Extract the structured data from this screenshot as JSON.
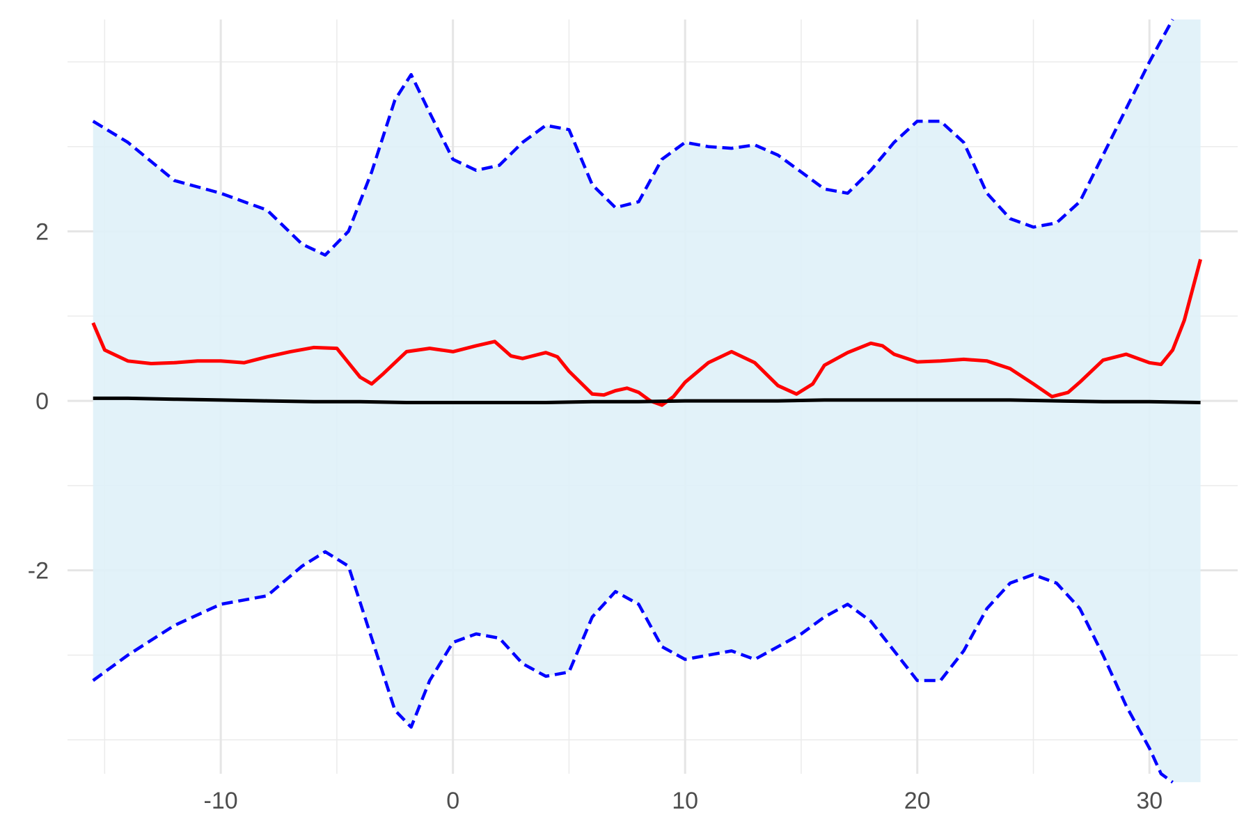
{
  "chart_data": {
    "type": "line",
    "title": "",
    "xlabel": "",
    "ylabel": "",
    "xlim": [
      -16.6,
      33.8
    ],
    "ylim": [
      -4.4,
      4.5
    ],
    "x_ticks": [
      -10,
      0,
      10,
      20,
      30
    ],
    "x_tick_labels": [
      "-10",
      "0",
      "10",
      "20",
      "30"
    ],
    "x_minor_ticks": [
      -15,
      -5,
      5,
      15,
      25
    ],
    "y_ticks": [
      -2,
      0,
      2
    ],
    "y_tick_labels": [
      "-2",
      "0",
      "2"
    ],
    "y_minor_ticks": [
      -4,
      -3,
      -1,
      1,
      3,
      4
    ],
    "grid": true,
    "legend": "none",
    "band": {
      "fill": "#dff1f8",
      "x": [
        -15.5,
        -14,
        -12,
        -10,
        -8,
        -6.5,
        -5.5,
        -4.5,
        -3.5,
        -2.5,
        -1.8,
        -1,
        0,
        1,
        2,
        3,
        4,
        5,
        6,
        7,
        8,
        9,
        10,
        11,
        12,
        13,
        14,
        15,
        16,
        17,
        18,
        19,
        20,
        21,
        22,
        23,
        24,
        25,
        26,
        27,
        28,
        29,
        30,
        30.5,
        31
      ],
      "upper": [
        3.3,
        3.05,
        2.6,
        2.45,
        2.25,
        1.85,
        1.72,
        2.0,
        2.7,
        3.55,
        3.85,
        3.4,
        2.85,
        2.72,
        2.78,
        3.05,
        3.25,
        3.2,
        2.55,
        2.28,
        2.35,
        2.85,
        3.05,
        3.0,
        2.98,
        3.02,
        2.9,
        2.7,
        2.5,
        2.45,
        2.72,
        3.05,
        3.3,
        3.3,
        3.05,
        2.45,
        2.15,
        2.05,
        2.1,
        2.35,
        2.9,
        3.45,
        4.0,
        4.25,
        4.5
      ],
      "lower": [
        -3.3,
        -3.0,
        -2.65,
        -2.4,
        -2.3,
        -1.95,
        -1.78,
        -1.95,
        -2.8,
        -3.65,
        -3.85,
        -3.3,
        -2.85,
        -2.75,
        -2.8,
        -3.1,
        -3.25,
        -3.2,
        -2.55,
        -2.25,
        -2.4,
        -2.9,
        -3.05,
        -3.0,
        -2.95,
        -3.05,
        -2.9,
        -2.75,
        -2.55,
        -2.4,
        -2.6,
        -2.95,
        -3.3,
        -3.3,
        -2.95,
        -2.45,
        -2.15,
        -2.05,
        -2.15,
        -2.45,
        -3.0,
        -3.6,
        -4.1,
        -4.4,
        -4.5
      ],
      "band_x_end": 32.2
    },
    "series": [
      {
        "color": "#0000ff",
        "style": "dashed",
        "x": [
          -15.5,
          -14,
          -12,
          -10,
          -8,
          -6.5,
          -5.5,
          -4.5,
          -3.5,
          -2.5,
          -1.8,
          -1,
          0,
          1,
          2,
          3,
          4,
          5,
          6,
          7,
          8,
          9,
          10,
          11,
          12,
          13,
          14,
          15,
          16,
          17,
          18,
          19,
          20,
          21,
          22,
          23,
          24,
          25,
          26,
          27,
          28,
          29,
          30,
          30.5,
          31
        ],
        "values": [
          3.3,
          3.05,
          2.6,
          2.45,
          2.25,
          1.85,
          1.72,
          2.0,
          2.7,
          3.55,
          3.85,
          3.4,
          2.85,
          2.72,
          2.78,
          3.05,
          3.25,
          3.2,
          2.55,
          2.28,
          2.35,
          2.85,
          3.05,
          3.0,
          2.98,
          3.02,
          2.9,
          2.7,
          2.5,
          2.45,
          2.72,
          3.05,
          3.3,
          3.3,
          3.05,
          2.45,
          2.15,
          2.05,
          2.1,
          2.35,
          2.9,
          3.45,
          4.0,
          4.25,
          4.5
        ]
      },
      {
        "color": "#0000ff",
        "style": "dashed",
        "x": [
          -15.5,
          -14,
          -12,
          -10,
          -8,
          -6.5,
          -5.5,
          -4.5,
          -3.5,
          -2.5,
          -1.8,
          -1,
          0,
          1,
          2,
          3,
          4,
          5,
          6,
          7,
          8,
          9,
          10,
          11,
          12,
          13,
          14,
          15,
          16,
          17,
          18,
          19,
          20,
          21,
          22,
          23,
          24,
          25,
          26,
          27,
          28,
          29,
          30,
          30.5,
          31
        ],
        "values": [
          -3.3,
          -3.0,
          -2.65,
          -2.4,
          -2.3,
          -1.95,
          -1.78,
          -1.95,
          -2.8,
          -3.65,
          -3.85,
          -3.3,
          -2.85,
          -2.75,
          -2.8,
          -3.1,
          -3.25,
          -3.2,
          -2.55,
          -2.25,
          -2.4,
          -2.9,
          -3.05,
          -3.0,
          -2.95,
          -3.05,
          -2.9,
          -2.75,
          -2.55,
          -2.4,
          -2.6,
          -2.95,
          -3.3,
          -3.3,
          -2.95,
          -2.45,
          -2.15,
          -2.05,
          -2.15,
          -2.45,
          -3.0,
          -3.6,
          -4.1,
          -4.4,
          -4.5
        ]
      },
      {
        "color": "#ff0000",
        "style": "solid",
        "x": [
          -15.5,
          -15,
          -14,
          -13,
          -12,
          -11,
          -10,
          -9,
          -8,
          -7,
          -6,
          -5,
          -4.5,
          -4,
          -3.5,
          -3,
          -2,
          -1,
          0,
          1,
          1.8,
          2.5,
          3,
          4,
          4.5,
          5,
          6,
          6.5,
          7,
          7.5,
          8,
          8.5,
          9,
          9.5,
          10,
          11,
          12,
          13,
          14,
          14.8,
          15.5,
          16,
          17,
          18,
          18.5,
          19,
          20,
          21,
          22,
          23,
          24,
          25,
          25.8,
          26.5,
          27,
          28,
          29,
          30,
          30.5,
          31,
          31.5,
          32.2
        ],
        "values": [
          0.92,
          0.6,
          0.47,
          0.44,
          0.45,
          0.47,
          0.47,
          0.45,
          0.52,
          0.58,
          0.63,
          0.62,
          0.45,
          0.28,
          0.2,
          0.32,
          0.58,
          0.62,
          0.58,
          0.65,
          0.7,
          0.53,
          0.5,
          0.57,
          0.52,
          0.35,
          0.08,
          0.07,
          0.12,
          0.15,
          0.1,
          0.0,
          -0.05,
          0.05,
          0.22,
          0.45,
          0.58,
          0.45,
          0.18,
          0.08,
          0.2,
          0.42,
          0.57,
          0.68,
          0.65,
          0.55,
          0.46,
          0.47,
          0.49,
          0.47,
          0.38,
          0.2,
          0.05,
          0.1,
          0.22,
          0.48,
          0.55,
          0.45,
          0.43,
          0.6,
          0.95,
          1.67
        ]
      },
      {
        "color": "#000000",
        "style": "solid",
        "x": [
          -15.5,
          -14,
          -12,
          -10,
          -8,
          -6,
          -4,
          -2,
          0,
          2,
          4,
          6,
          8,
          10,
          12,
          14,
          16,
          18,
          20,
          22,
          24,
          26,
          28,
          30,
          32.2
        ],
        "values": [
          0.03,
          0.03,
          0.02,
          0.01,
          0.0,
          -0.01,
          -0.01,
          -0.02,
          -0.02,
          -0.02,
          -0.02,
          -0.01,
          -0.01,
          0.0,
          0.0,
          0.0,
          0.01,
          0.01,
          0.01,
          0.01,
          0.01,
          0.0,
          -0.01,
          -0.01,
          -0.02
        ]
      }
    ]
  }
}
